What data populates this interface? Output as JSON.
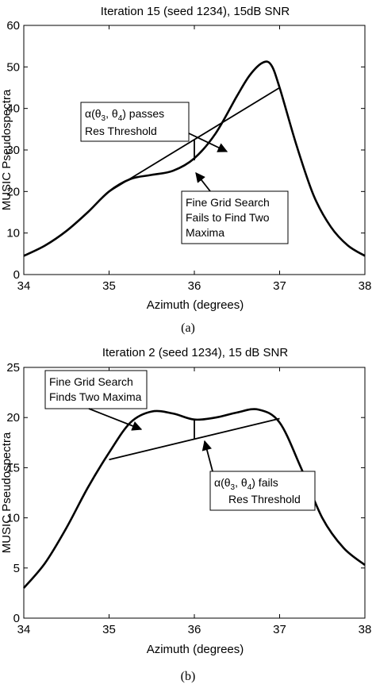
{
  "chart_data": [
    {
      "type": "line",
      "title": "Iteration 15 (seed 1234), 15dB SNR",
      "xlabel": "Azimuth (degrees)",
      "ylabel": "MUSIC Pseudospectra",
      "xlim": [
        34,
        38
      ],
      "ylim": [
        0,
        60
      ],
      "xticks": [
        34,
        35,
        36,
        37,
        38
      ],
      "yticks": [
        0,
        10,
        20,
        30,
        40,
        50,
        60
      ],
      "grid": false,
      "caption": "(a)",
      "series": [
        {
          "x": [
            34,
            34.25,
            34.5,
            34.75,
            35,
            35.25,
            35.5,
            35.75,
            36,
            36.25,
            36.5,
            36.65,
            36.8,
            36.9,
            37,
            37.2,
            37.4,
            37.6,
            37.8,
            38
          ],
          "values": [
            4.5,
            7,
            10.5,
            15,
            20,
            23,
            24,
            25,
            28,
            34,
            43,
            48,
            51,
            50.5,
            45,
            31,
            19,
            11.5,
            7,
            4.5
          ]
        },
        {
          "x": [
            35,
            37
          ],
          "values": [
            20,
            45
          ]
        }
      ],
      "vline": {
        "x": 36,
        "y0": 27.5,
        "y1": 32.5
      },
      "annotations": [
        {
          "line1_prefix": "α(θ",
          "sub1": "3",
          "mid": ", θ",
          "sub2": "4",
          "line1_suffix": ") passes",
          "line2": "Res Threshold"
        },
        {
          "lines": [
            "Fine Grid Search",
            "Fails to Find Two",
            "Maxima"
          ]
        }
      ]
    },
    {
      "type": "line",
      "title": "Iteration 2 (seed 1234), 15 dB SNR",
      "xlabel": "Azimuth (degrees)",
      "ylabel": "MUSIC Pseudospectra",
      "xlim": [
        34,
        38
      ],
      "ylim": [
        0,
        25
      ],
      "xticks": [
        34,
        35,
        36,
        37,
        38
      ],
      "yticks": [
        0,
        5,
        10,
        15,
        20,
        25
      ],
      "grid": false,
      "caption": "(b)",
      "series": [
        {
          "x": [
            34,
            34.25,
            34.5,
            34.75,
            35,
            35.25,
            35.5,
            35.75,
            36,
            36.25,
            36.5,
            36.75,
            37,
            37.25,
            37.5,
            37.75,
            38
          ],
          "values": [
            3,
            5.5,
            9,
            13,
            16.5,
            19.5,
            20.6,
            20.4,
            19.8,
            20,
            20.5,
            20.8,
            19.5,
            15,
            10,
            7,
            5.3
          ]
        },
        {
          "x": [
            35,
            37
          ],
          "values": [
            15.8,
            19.9
          ]
        }
      ],
      "vline": {
        "x": 36,
        "y0": 17.8,
        "y1": 19.8
      },
      "annotations": [
        {
          "lines": [
            "Fine Grid Search",
            "Finds Two Maxima"
          ]
        },
        {
          "line1_prefix": "α(θ",
          "sub1": "3",
          "mid": ", θ",
          "sub2": "4",
          "line1_suffix": ") fails",
          "line2": "Res Threshold"
        }
      ]
    }
  ]
}
